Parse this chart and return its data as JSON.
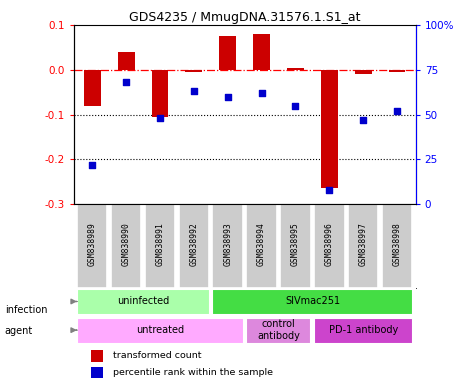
{
  "title": "GDS4235 / MmugDNA.31576.1.S1_at",
  "samples": [
    "GSM838989",
    "GSM838990",
    "GSM838991",
    "GSM838992",
    "GSM838993",
    "GSM838994",
    "GSM838995",
    "GSM838996",
    "GSM838997",
    "GSM838998"
  ],
  "transformed_count": [
    -0.08,
    0.04,
    -0.105,
    -0.005,
    0.075,
    0.08,
    0.005,
    -0.265,
    -0.01,
    -0.005
  ],
  "percentile_rank": [
    22,
    68,
    48,
    63,
    60,
    62,
    55,
    8,
    47,
    52
  ],
  "ylim_left": [
    -0.3,
    0.1
  ],
  "ylim_right": [
    0,
    100
  ],
  "yticks_left": [
    -0.3,
    -0.2,
    -0.1,
    0.0,
    0.1
  ],
  "yticks_right": [
    0,
    25,
    50,
    75,
    100
  ],
  "ytick_labels_right": [
    "0",
    "25",
    "50",
    "75",
    "100%"
  ],
  "hline_y": 0.0,
  "dotted_lines": [
    -0.1,
    -0.2
  ],
  "bar_color": "#cc0000",
  "dot_color": "#0000cc",
  "bar_width": 0.5,
  "infection_groups": [
    {
      "label": "uninfected",
      "start": 0,
      "end": 4,
      "color": "#aaffaa"
    },
    {
      "label": "SIVmac251",
      "start": 4,
      "end": 10,
      "color": "#44dd44"
    }
  ],
  "agent_groups": [
    {
      "label": "untreated",
      "start": 0,
      "end": 5,
      "color": "#ffaaff"
    },
    {
      "label": "control\nantibody",
      "start": 5,
      "end": 7,
      "color": "#dd88dd"
    },
    {
      "label": "PD-1 antibody",
      "start": 7,
      "end": 10,
      "color": "#cc44cc"
    }
  ],
  "legend_items": [
    {
      "label": "transformed count",
      "color": "#cc0000"
    },
    {
      "label": "percentile rank within the sample",
      "color": "#0000cc"
    }
  ],
  "infection_label": "infection",
  "agent_label": "agent"
}
